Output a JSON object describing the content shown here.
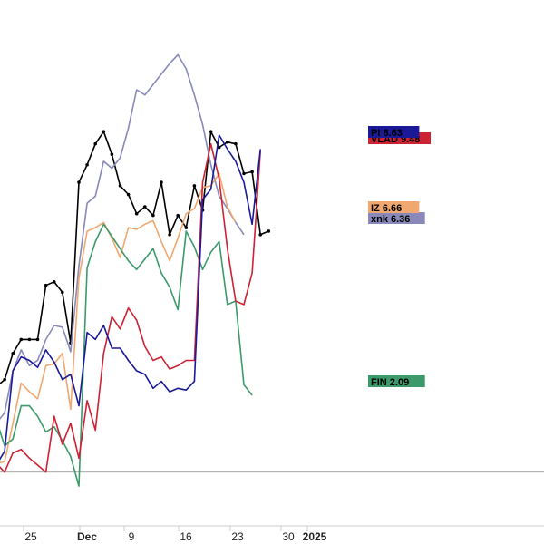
{
  "chart_data": {
    "type": "line",
    "x_ticks": [
      {
        "label": "25",
        "bold": false
      },
      {
        "label": "Dec",
        "bold": true
      },
      {
        "label": "9",
        "bold": false
      },
      {
        "label": "16",
        "bold": false
      },
      {
        "label": "23",
        "bold": false
      },
      {
        "label": "30",
        "bold": false
      },
      {
        "label": "2025",
        "bold": true
      }
    ],
    "ylim": [
      -1,
      26
    ],
    "reference_line": 0,
    "grid": false,
    "legend": "labels at right of last values",
    "series": [
      {
        "color": "#000000",
        "marker": true,
        "values": [
          4.9,
          5.3,
          6.8,
          7.6,
          7.6,
          7.6,
          10.7,
          10.9,
          10.3,
          7.4,
          16.6,
          17.6,
          18.8,
          19.5,
          18.2,
          16.4,
          15.9,
          14.8,
          15.2,
          14.7,
          16.6,
          13.6,
          14.7,
          14.0,
          16.4,
          15.0,
          19.5,
          18.6,
          18.9,
          18.8,
          17.1,
          17.2,
          13.6,
          13.8
        ]
      },
      {
        "name": "xnk",
        "value_label": "6.36",
        "color": "#8888bb",
        "marker": false,
        "values": [
          2.8,
          3.4,
          5.8,
          7.0,
          6.1,
          6.4,
          7.6,
          8.4,
          8.3,
          6.9,
          11.8,
          15.4,
          15.8,
          17.8,
          17.4,
          18.0,
          19.7,
          21.9,
          21.6,
          22.2,
          22.8,
          23.4,
          23.9,
          23.1,
          21.6,
          19.9,
          17.6,
          15.8,
          15.1,
          14.3,
          13.6
        ]
      },
      {
        "name": "IZ",
        "value_label": "6.66",
        "color": "#f0a870",
        "marker": false,
        "values": [
          0.5,
          0.6,
          2.8,
          5.1,
          4.6,
          4.2,
          6.1,
          6.2,
          6.8,
          3.6,
          11.1,
          13.8,
          14.0,
          14.3,
          13.4,
          12.3,
          14.0,
          13.9,
          14.2,
          14.4,
          13.2,
          12.1,
          13.4,
          14.8,
          15.1,
          16.3,
          16.4,
          17.1,
          15.2,
          14.3
        ]
      },
      {
        "name": "FIN",
        "value_label": "2.09",
        "color": "#3c9a6a",
        "marker": false,
        "values": [
          3.0,
          1.5,
          1.9,
          3.8,
          3.8,
          3.2,
          2.3,
          2.6,
          1.8,
          0.9,
          -0.8,
          11.7,
          13.2,
          14.2,
          13.5,
          12.8,
          12.1,
          11.6,
          12.2,
          12.8,
          11.4,
          10.6,
          9.3,
          13.8,
          12.9,
          11.6,
          12.6,
          13.2,
          9.6,
          9.8,
          5.0,
          4.4
        ]
      },
      {
        "name": "VLAD",
        "value_label": "9.48",
        "color": "#cc2233",
        "marker": false,
        "values": [
          0.5,
          0.0,
          1.1,
          1.3,
          0.8,
          0.4,
          0.0,
          3.2,
          1.6,
          2.8,
          0.8,
          4.1,
          2.4,
          6.8,
          8.9,
          8.2,
          9.4,
          8.7,
          7.2,
          6.4,
          6.6,
          5.9,
          6.1,
          6.4,
          6.4,
          16.6,
          18.8,
          16.8,
          12.8,
          9.8,
          9.6,
          11.4,
          18.4
        ]
      },
      {
        "name": "PI",
        "value_label": "8.63",
        "color": "#1a1a99",
        "marker": false,
        "values": [
          0.4,
          1.2,
          5.8,
          6.6,
          6.4,
          6.0,
          7.0,
          6.3,
          5.3,
          5.6,
          3.8,
          8.0,
          7.6,
          8.4,
          7.1,
          7.1,
          6.4,
          5.8,
          5.6,
          4.8,
          5.2,
          4.6,
          4.8,
          4.7,
          5.2,
          15.6,
          16.2,
          19.3,
          18.5,
          17.8,
          16.6,
          14.2,
          18.5
        ]
      }
    ]
  }
}
